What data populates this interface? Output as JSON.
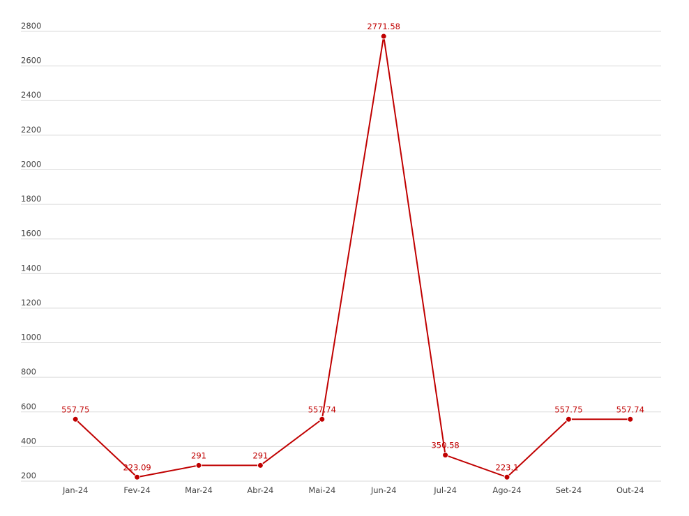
{
  "chart_data": {
    "type": "line",
    "categories": [
      "Jan-24",
      "Fev-24",
      "Mar-24",
      "Abr-24",
      "Mai-24",
      "Jun-24",
      "Jul-24",
      "Ago-24",
      "Set-24",
      "Out-24"
    ],
    "values": [
      557.75,
      223.09,
      291,
      291,
      557.74,
      2771.58,
      350.58,
      223.1,
      557.75,
      557.74
    ],
    "color": "#c00000",
    "ylim": [
      200,
      2800
    ],
    "yticks": [
      200,
      400,
      600,
      800,
      1000,
      1200,
      1400,
      1600,
      1800,
      2000,
      2200,
      2400,
      2600,
      2800
    ],
    "grid": true
  }
}
